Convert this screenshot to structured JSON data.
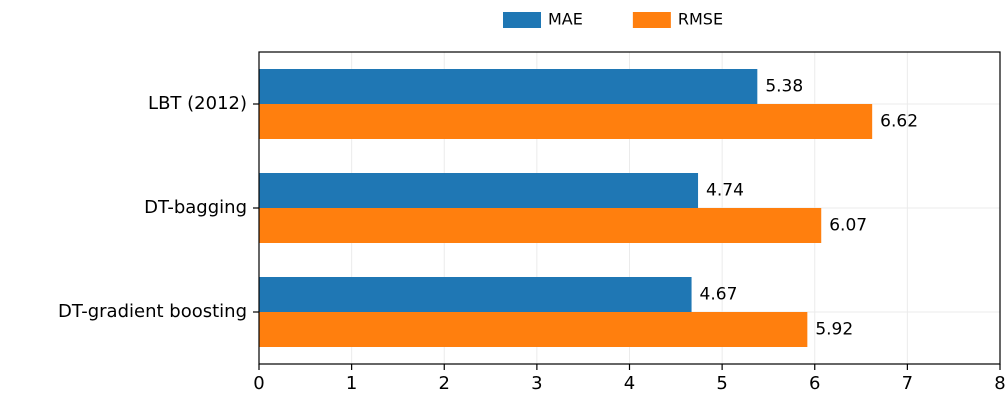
{
  "chart_data": {
    "type": "hbar",
    "categories": [
      "LBT (2012)",
      "DT-bagging",
      "DT-gradient boosting"
    ],
    "series": [
      {
        "name": "MAE",
        "color": "#1f77b4",
        "values": [
          5.38,
          4.74,
          4.67
        ]
      },
      {
        "name": "RMSE",
        "color": "#ff7f0e",
        "values": [
          6.62,
          6.07,
          5.92
        ]
      }
    ],
    "xlim": [
      0,
      8
    ],
    "xticks": [
      0,
      1,
      2,
      3,
      4,
      5,
      6,
      7,
      8
    ],
    "grid": true,
    "legend": "top"
  }
}
